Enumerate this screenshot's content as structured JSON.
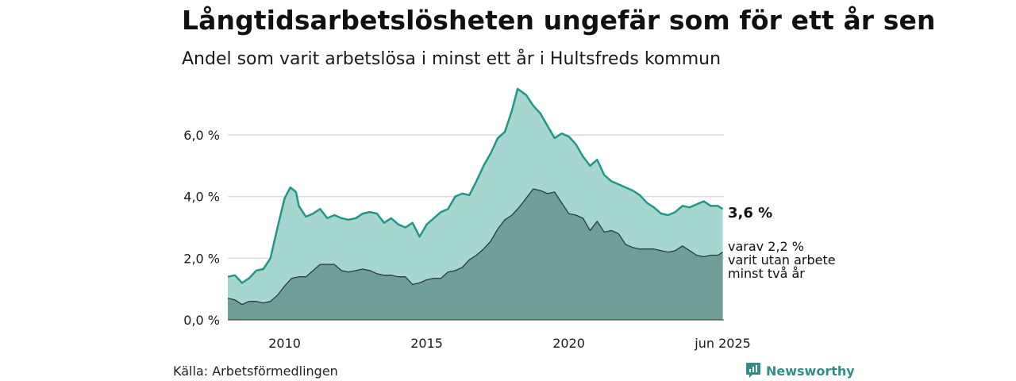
{
  "title": "Långtidsarbetslösheten ungefär som för ett år sen",
  "subtitle": "Andel som varit arbetslösa i minst ett år i Hultsfreds kommun",
  "source": "Källa: Arbetsförmedlingen",
  "brand": "Newsworthy",
  "colors": {
    "total_fill": "#a5d6d0",
    "total_line": "#23968a",
    "two_year_fill": "#6f9e97",
    "two_year_line": "#2b3d3a",
    "grid": "#dddddd",
    "brand": "#2f8f86"
  },
  "end_labels": {
    "total": "3,6 %",
    "two_year_line1": "varav 2,2 %",
    "two_year_line2": "varit utan arbete",
    "two_year_line3": "minst två år"
  },
  "chart_data": {
    "type": "area",
    "x_range": [
      2008.0,
      2025.46
    ],
    "ylim": [
      0,
      7.6
    ],
    "y_ticks": [
      0,
      2,
      4,
      6
    ],
    "y_tick_labels": [
      "0,0 %",
      "2,0 %",
      "4,0 %",
      "6,0 %"
    ],
    "x_ticks": [
      2010,
      2015,
      2020,
      2025.42
    ],
    "x_tick_labels": [
      "2010",
      "2015",
      "2020",
      "jun 2025"
    ],
    "grid": "horizontal",
    "series": [
      {
        "name": "Minst ett år",
        "x": [
          2008.0,
          2008.25,
          2008.5,
          2008.75,
          2009.0,
          2009.25,
          2009.5,
          2009.75,
          2010.0,
          2010.2,
          2010.4,
          2010.5,
          2010.75,
          2011.0,
          2011.25,
          2011.5,
          2011.75,
          2012.0,
          2012.25,
          2012.5,
          2012.75,
          2013.0,
          2013.25,
          2013.5,
          2013.75,
          2014.0,
          2014.25,
          2014.5,
          2014.75,
          2015.0,
          2015.25,
          2015.5,
          2015.75,
          2016.0,
          2016.25,
          2016.5,
          2016.75,
          2017.0,
          2017.25,
          2017.5,
          2017.75,
          2018.0,
          2018.2,
          2018.5,
          2018.75,
          2019.0,
          2019.25,
          2019.5,
          2019.75,
          2020.0,
          2020.25,
          2020.5,
          2020.75,
          2021.0,
          2021.25,
          2021.5,
          2021.75,
          2022.0,
          2022.25,
          2022.5,
          2022.75,
          2023.0,
          2023.25,
          2023.5,
          2023.75,
          2024.0,
          2024.25,
          2024.5,
          2024.75,
          2025.0,
          2025.25,
          2025.42
        ],
        "values": [
          1.4,
          1.45,
          1.2,
          1.35,
          1.6,
          1.65,
          2.0,
          3.0,
          3.95,
          4.3,
          4.15,
          3.7,
          3.35,
          3.45,
          3.6,
          3.3,
          3.4,
          3.3,
          3.25,
          3.3,
          3.45,
          3.5,
          3.45,
          3.15,
          3.3,
          3.1,
          3.0,
          3.15,
          2.7,
          3.1,
          3.3,
          3.5,
          3.6,
          4.0,
          4.1,
          4.05,
          4.5,
          5.0,
          5.4,
          5.9,
          6.1,
          6.8,
          7.5,
          7.3,
          6.95,
          6.7,
          6.3,
          5.9,
          6.05,
          5.95,
          5.7,
          5.3,
          5.0,
          5.2,
          4.7,
          4.5,
          4.4,
          4.3,
          4.2,
          4.05,
          3.8,
          3.65,
          3.45,
          3.4,
          3.5,
          3.7,
          3.65,
          3.75,
          3.85,
          3.7,
          3.7,
          3.6
        ]
      },
      {
        "name": "Minst två år",
        "x": [
          2008.0,
          2008.25,
          2008.5,
          2008.75,
          2009.0,
          2009.25,
          2009.5,
          2009.75,
          2010.0,
          2010.25,
          2010.5,
          2010.75,
          2011.0,
          2011.25,
          2011.5,
          2011.75,
          2012.0,
          2012.25,
          2012.5,
          2012.75,
          2013.0,
          2013.25,
          2013.5,
          2013.75,
          2014.0,
          2014.25,
          2014.5,
          2014.75,
          2015.0,
          2015.25,
          2015.5,
          2015.75,
          2016.0,
          2016.25,
          2016.5,
          2016.75,
          2017.0,
          2017.25,
          2017.5,
          2017.75,
          2018.0,
          2018.25,
          2018.5,
          2018.75,
          2019.0,
          2019.25,
          2019.5,
          2019.75,
          2020.0,
          2020.25,
          2020.5,
          2020.75,
          2021.0,
          2021.25,
          2021.5,
          2021.75,
          2022.0,
          2022.25,
          2022.5,
          2022.75,
          2023.0,
          2023.25,
          2023.5,
          2023.75,
          2024.0,
          2024.25,
          2024.5,
          2024.75,
          2025.0,
          2025.25,
          2025.42
        ],
        "values": [
          0.7,
          0.65,
          0.5,
          0.6,
          0.6,
          0.55,
          0.6,
          0.8,
          1.1,
          1.35,
          1.4,
          1.4,
          1.6,
          1.8,
          1.8,
          1.8,
          1.6,
          1.55,
          1.6,
          1.65,
          1.6,
          1.5,
          1.45,
          1.45,
          1.4,
          1.4,
          1.15,
          1.2,
          1.3,
          1.35,
          1.35,
          1.55,
          1.6,
          1.7,
          1.95,
          2.1,
          2.3,
          2.55,
          2.95,
          3.25,
          3.4,
          3.65,
          3.95,
          4.25,
          4.2,
          4.1,
          4.15,
          3.8,
          3.45,
          3.4,
          3.3,
          2.9,
          3.2,
          2.85,
          2.9,
          2.8,
          2.45,
          2.35,
          2.3,
          2.3,
          2.3,
          2.25,
          2.2,
          2.25,
          2.4,
          2.25,
          2.1,
          2.05,
          2.1,
          2.1,
          2.2
        ]
      }
    ]
  }
}
